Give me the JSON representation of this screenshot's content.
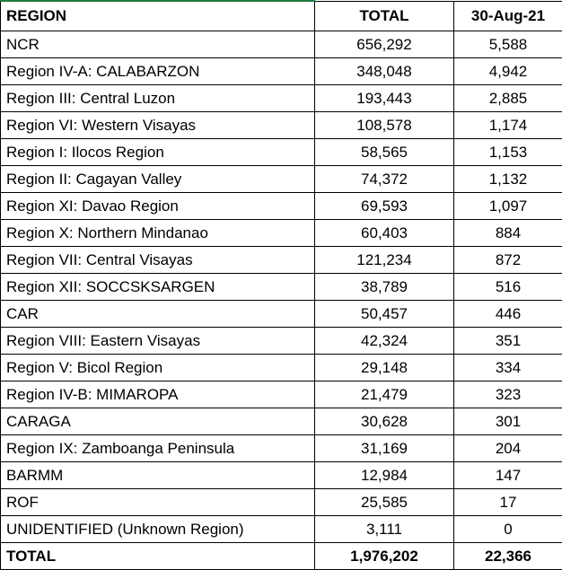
{
  "table": {
    "header": [
      "REGION",
      "TOTAL",
      "30-Aug-21"
    ],
    "rows": [
      [
        "NCR",
        "656,292",
        "5,588"
      ],
      [
        "Region IV-A: CALABARZON",
        "348,048",
        "4,942"
      ],
      [
        "Region III: Central Luzon",
        "193,443",
        "2,885"
      ],
      [
        "Region VI: Western Visayas",
        "108,578",
        "1,174"
      ],
      [
        "Region I: Ilocos Region",
        "58,565",
        "1,153"
      ],
      [
        "Region II: Cagayan Valley",
        "74,372",
        "1,132"
      ],
      [
        "Region XI: Davao Region",
        "69,593",
        "1,097"
      ],
      [
        "Region X: Northern Mindanao",
        "60,403",
        "884"
      ],
      [
        "Region VII: Central Visayas",
        "121,234",
        "872"
      ],
      [
        "Region XII: SOCCSKSARGEN",
        "38,789",
        "516"
      ],
      [
        "CAR",
        "50,457",
        "446"
      ],
      [
        "Region VIII: Eastern Visayas",
        "42,324",
        "351"
      ],
      [
        "Region V: Bicol Region",
        "29,148",
        "334"
      ],
      [
        "Region IV-B: MIMAROPA",
        "21,479",
        "323"
      ],
      [
        "CARAGA",
        "30,628",
        "301"
      ],
      [
        "Region IX: Zamboanga Peninsula",
        "31,169",
        "204"
      ],
      [
        "BARMM",
        "12,984",
        "147"
      ],
      [
        "ROF",
        "25,585",
        "17"
      ],
      [
        "UNIDENTIFIED (Unknown Region)",
        "3,111",
        "0"
      ]
    ],
    "total": [
      "TOTAL",
      "1,976,202",
      "22,366"
    ]
  }
}
